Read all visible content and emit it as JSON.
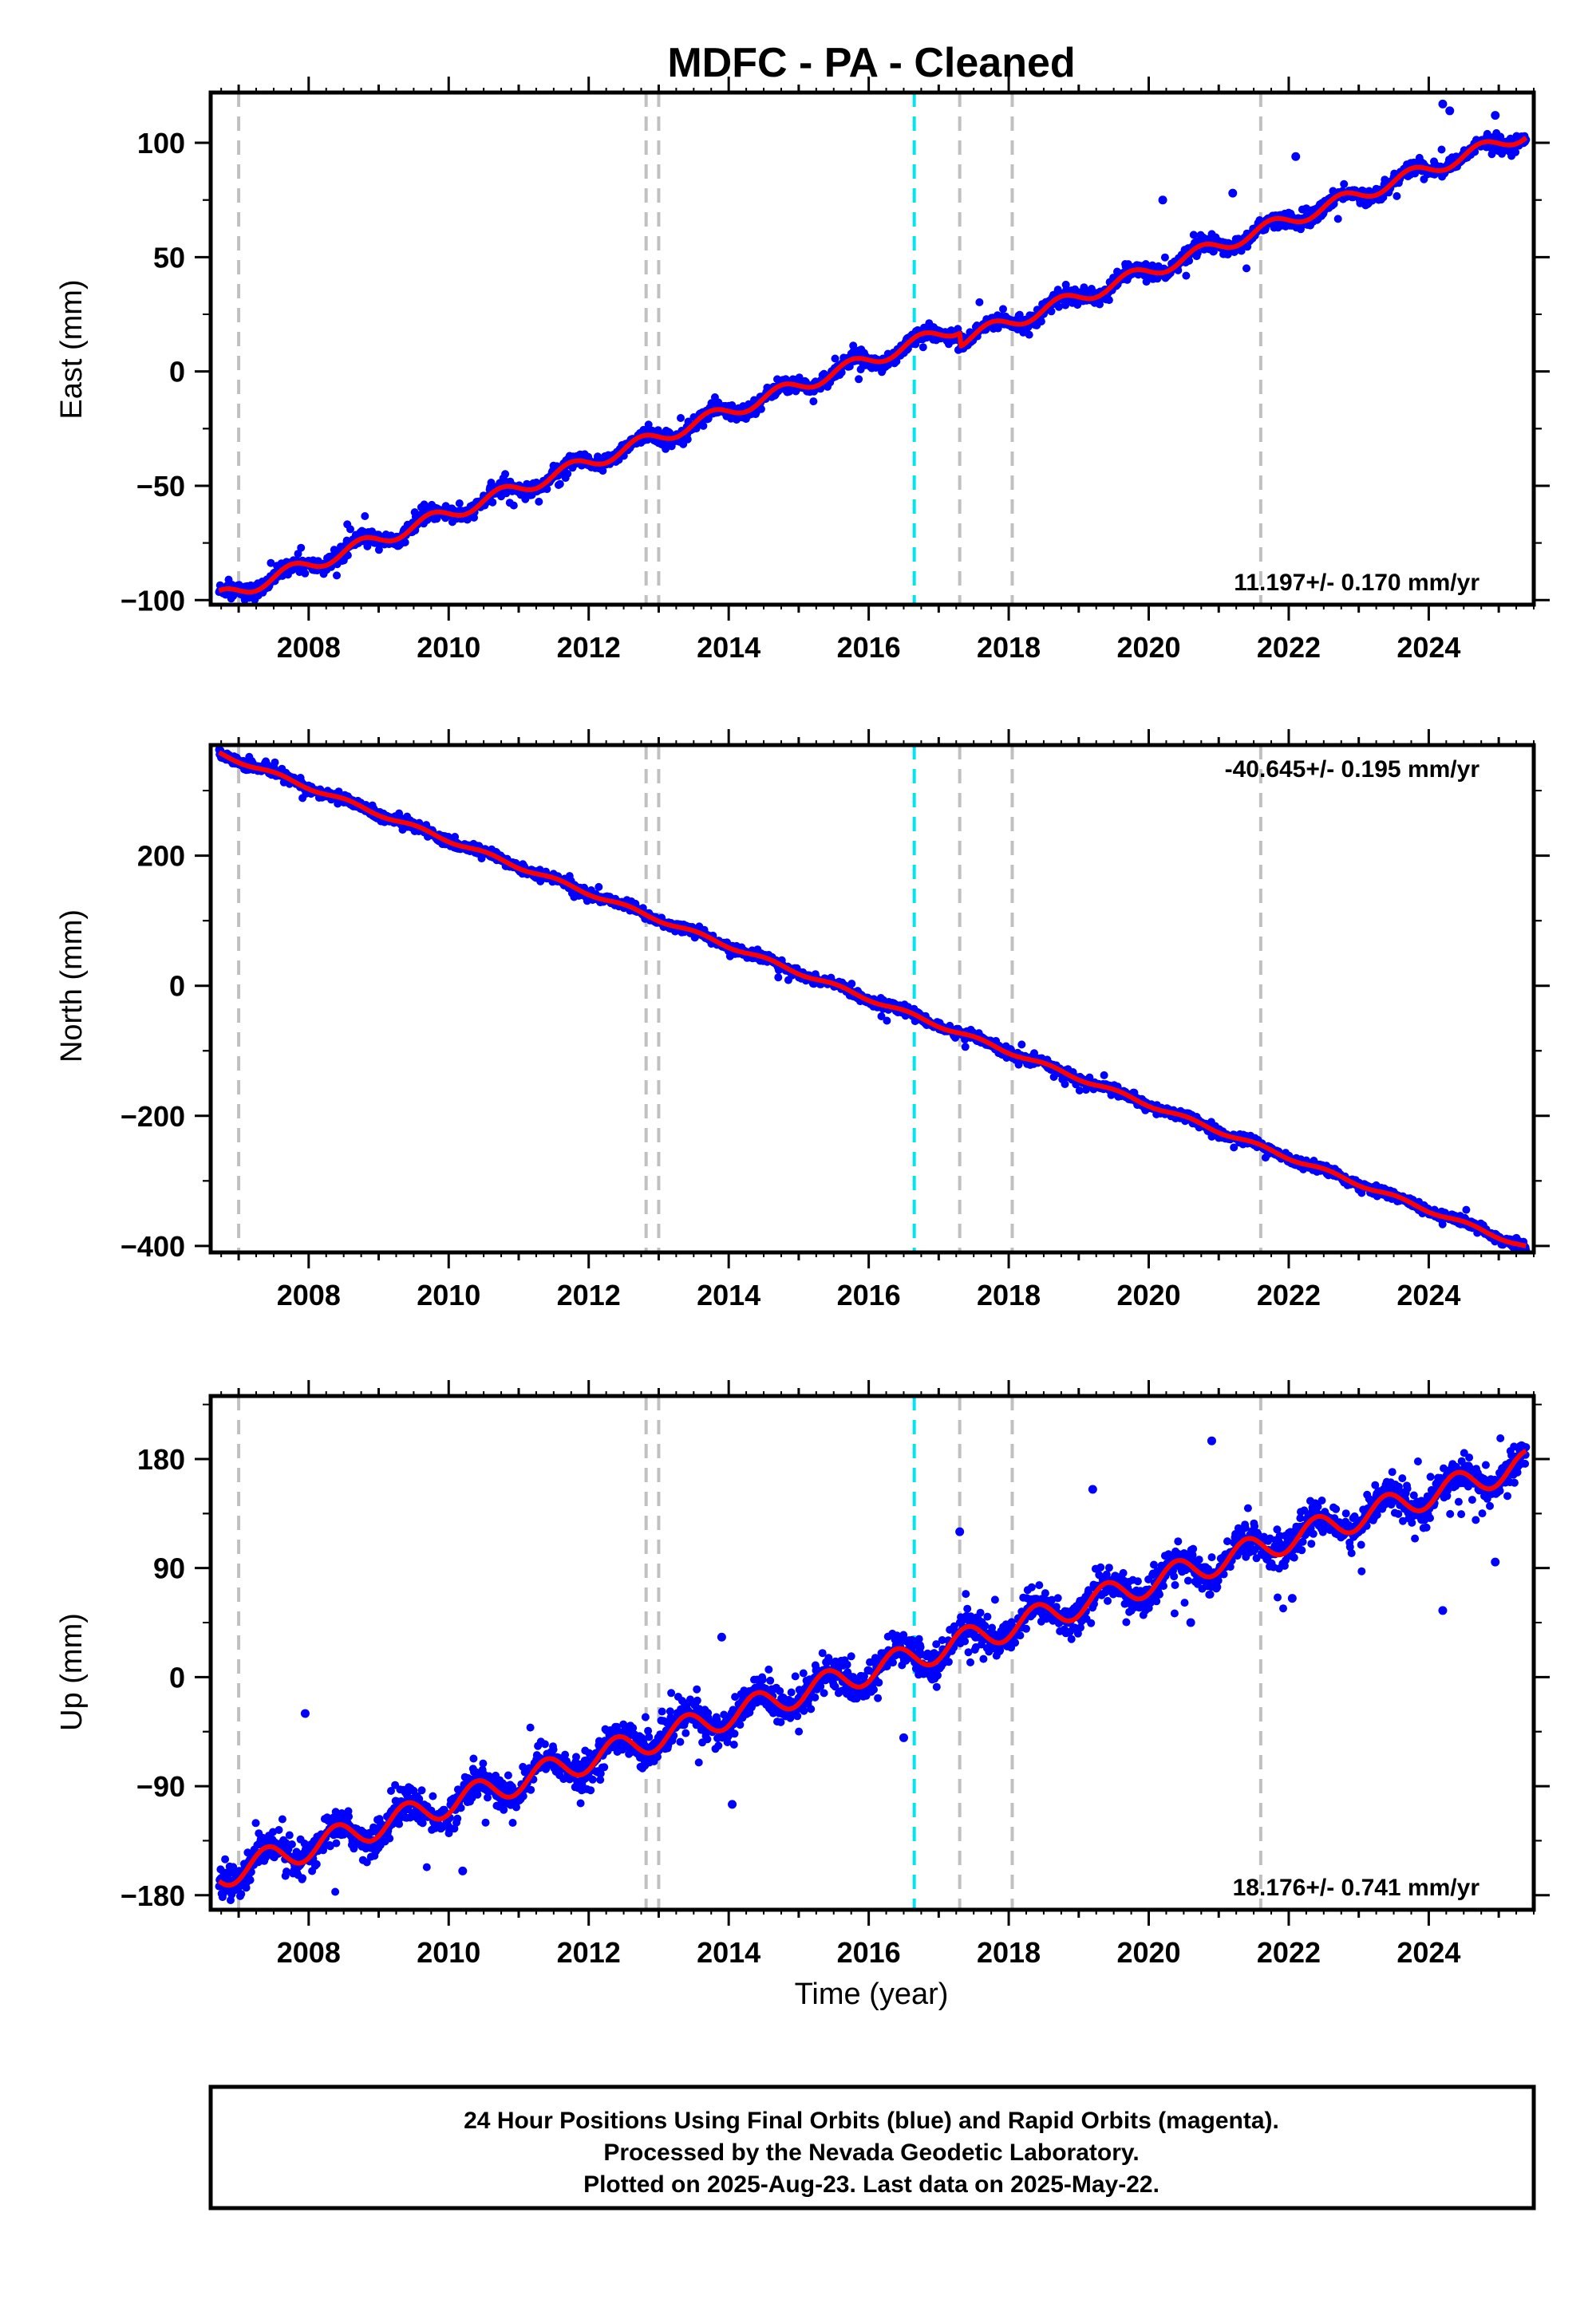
{
  "page": {
    "title": "MDFC  - PA - Cleaned"
  },
  "footer": {
    "lines": [
      "24 Hour Positions Using Final Orbits (blue) and Rapid Orbits (magenta).",
      "Processed by the Nevada Geodetic Laboratory.",
      "Plotted on 2025-Aug-23. Last data on 2025-May-22."
    ]
  },
  "colors": {
    "data_points": "#0000ff",
    "model_fit": "#ff0000",
    "equipment_change_lines": "#c0c0c0",
    "event_line": "#00e5ee",
    "frame": "#000000"
  },
  "chart_data": [
    {
      "type": "scatter",
      "title": "MDFC  - PA - Cleaned",
      "xlabel": "",
      "ylabel": "East (mm)",
      "xlim": [
        2006.6,
        2025.5
      ],
      "ylim": [
        -102,
        122
      ],
      "xticks": [
        2008,
        2010,
        2012,
        2014,
        2016,
        2018,
        2020,
        2022,
        2024
      ],
      "xtick_labels": [
        "2008",
        "2010",
        "2012",
        "2014",
        "2016",
        "2018",
        "2020",
        "2022",
        "2024"
      ],
      "yticks": [
        -100,
        -50,
        0,
        50,
        100
      ],
      "ytick_labels": [
        "−100",
        "−50",
        "0",
        "50",
        "100"
      ],
      "rate_annotation": "11.197+/- 0.170 mm/yr",
      "rate_position": "bottom-right",
      "model": {
        "rate": 11.197,
        "ref_year": 2016.0,
        "ref_value": 5.0,
        "annual_amplitude": 3.0,
        "annual_phase": 0.5,
        "offsets": [
          {
            "year": 2017.3,
            "step": -6.0
          }
        ]
      },
      "scatter": 1.6,
      "outliers": [
        [
          2020.2,
          75
        ],
        [
          2021.2,
          78
        ],
        [
          2022.1,
          94
        ],
        [
          2024.2,
          117
        ],
        [
          2024.3,
          114
        ],
        [
          2024.95,
          112
        ]
      ],
      "grey_lines": [
        2007.0,
        2012.82,
        2013.0,
        2017.3,
        2018.05,
        2021.6
      ],
      "cyan_lines": [
        2016.65
      ],
      "grid": false
    },
    {
      "type": "scatter",
      "xlabel": "",
      "ylabel": "North (mm)",
      "xlim": [
        2006.6,
        2025.5
      ],
      "ylim": [
        -410,
        370
      ],
      "xticks": [
        2008,
        2010,
        2012,
        2014,
        2016,
        2018,
        2020,
        2022,
        2024
      ],
      "xtick_labels": [
        "2008",
        "2010",
        "2012",
        "2014",
        "2016",
        "2018",
        "2020",
        "2022",
        "2024"
      ],
      "yticks": [
        -400,
        -200,
        0,
        200
      ],
      "ytick_labels": [
        "−400",
        "−200",
        "0",
        "200"
      ],
      "rate_annotation": "-40.645+/- 0.195 mm/yr",
      "rate_position": "top-right",
      "model": {
        "rate": -40.645,
        "ref_year": 2016.0,
        "ref_value": -20.0,
        "annual_amplitude": 3.0,
        "annual_phase": 0.3,
        "offsets": []
      },
      "scatter": 3.5,
      "outliers": [],
      "grey_lines": [
        2007.0,
        2012.82,
        2013.0,
        2017.3,
        2018.05,
        2021.6
      ],
      "cyan_lines": [
        2016.65
      ],
      "grid": false
    },
    {
      "type": "scatter",
      "xlabel": "Time (year)",
      "ylabel": "Up (mm)",
      "xlim": [
        2006.6,
        2025.5
      ],
      "ylim": [
        -192,
        232
      ],
      "xticks": [
        2008,
        2010,
        2012,
        2014,
        2016,
        2018,
        2020,
        2022,
        2024
      ],
      "xtick_labels": [
        "2008",
        "2010",
        "2012",
        "2014",
        "2016",
        "2018",
        "2020",
        "2022",
        "2024"
      ],
      "yticks": [
        -180,
        -90,
        0,
        90,
        180
      ],
      "ytick_labels": [
        "−180",
        "−90",
        "0",
        "90",
        "180"
      ],
      "rate_annotation": "18.176+/- 0.741 mm/yr",
      "rate_position": "bottom-right",
      "model": {
        "rate": 18.176,
        "ref_year": 2016.0,
        "ref_value": 5.0,
        "annual_amplitude": 11.0,
        "annual_phase": 0.15,
        "offsets": []
      },
      "scatter": 7.0,
      "outliers": [
        [
          2007.95,
          -30
        ],
        [
          2013.9,
          33
        ],
        [
          2014.05,
          -105
        ],
        [
          2010.2,
          -160
        ],
        [
          2017.3,
          120
        ],
        [
          2019.2,
          155
        ],
        [
          2020.9,
          195
        ],
        [
          2020.6,
          45
        ],
        [
          2022.05,
          65
        ],
        [
          2024.2,
          55
        ],
        [
          2024.95,
          95
        ],
        [
          2023.9,
          130
        ],
        [
          2016.5,
          -50
        ]
      ],
      "grey_lines": [
        2007.0,
        2012.82,
        2013.0,
        2017.3,
        2018.05,
        2021.6
      ],
      "cyan_lines": [
        2016.65
      ],
      "grid": false
    }
  ]
}
